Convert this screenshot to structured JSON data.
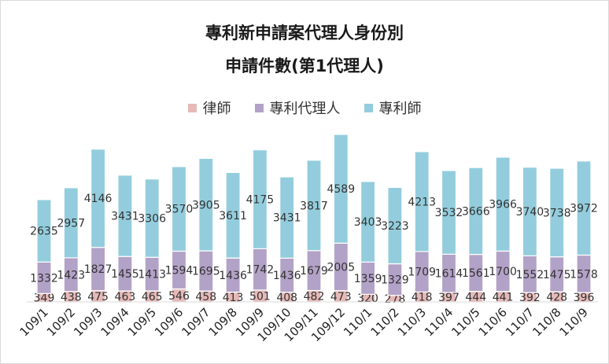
{
  "colors": {
    "lawyer": "#e6b9b8",
    "agent": "#b3a2c7",
    "attorney": "#93cddd",
    "text": "#333333"
  },
  "chart_data": {
    "type": "bar",
    "stacked": true,
    "title": "專利新申請案代理人身份別",
    "subtitle": "申請件數(第1代理人)",
    "legend_position": "top",
    "categories": [
      "109/1",
      "109/2",
      "109/3",
      "109/4",
      "109/5",
      "109/6",
      "109/7",
      "109/8",
      "109/9",
      "109/10",
      "109/11",
      "109/12",
      "110/1",
      "110/2",
      "110/3",
      "110/4",
      "110/5",
      "110/6",
      "110/7",
      "110/8",
      "110/9"
    ],
    "series": [
      {
        "name": "律師",
        "values": [
          349,
          438,
          475,
          463,
          465,
          546,
          458,
          413,
          501,
          408,
          482,
          473,
          320,
          278,
          418,
          397,
          444,
          441,
          392,
          428,
          396
        ]
      },
      {
        "name": "專利代理人",
        "values": [
          1332,
          1423,
          1827,
          1455,
          1413,
          1594,
          1695,
          1436,
          1742,
          1436,
          1679,
          2005,
          1359,
          1329,
          1709,
          1614,
          1561,
          1700,
          1552,
          1475,
          1578
        ]
      },
      {
        "name": "專利師",
        "values": [
          2635,
          2957,
          4146,
          3431,
          3306,
          3570,
          3905,
          3611,
          4175,
          3431,
          3817,
          4589,
          3403,
          3223,
          4213,
          3532,
          3666,
          3966,
          3740,
          3738,
          3972
        ]
      }
    ],
    "xlabel": "",
    "ylabel": "",
    "ylim": [
      0,
      7100
    ],
    "grid": false
  }
}
